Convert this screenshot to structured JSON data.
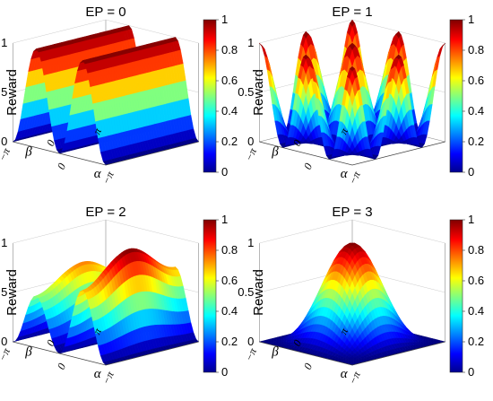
{
  "figure": {
    "colormap": "jet",
    "colormap_stops": [
      "#00008f",
      "#0000ff",
      "#00ffff",
      "#ffff00",
      "#ff0000",
      "#800000"
    ],
    "axis_color": "#888888",
    "text_color": "#000000"
  },
  "chart_data": [
    {
      "type": "surface",
      "title": "EP = 0",
      "zlabel": "Reward",
      "xlabel": "β",
      "ylabel": "α",
      "zlim": [
        0,
        1
      ],
      "z_ticks": [
        "0",
        "0.5",
        "1"
      ],
      "x_ticks": [
        "−π",
        "0",
        "π"
      ],
      "y_ticks": [
        "0",
        "−π"
      ],
      "colorbar": {
        "ticks": [
          "0",
          "0.2",
          "0.4",
          "0.6",
          "0.8",
          "1"
        ],
        "range": [
          0,
          1
        ]
      },
      "function": "two ridges along β, peaks at α = ±π/2, value 1",
      "grid_values": [
        [
          0,
          0.5,
          1,
          0.5,
          0,
          0.5,
          1,
          0.5,
          0
        ]
      ]
    },
    {
      "type": "surface",
      "title": "EP = 1",
      "zlabel": "Reward",
      "xlabel": "β",
      "ylabel": "α",
      "zlim": [
        0,
        1
      ],
      "z_ticks": [
        "0",
        "0.5",
        "1"
      ],
      "x_ticks": [
        "−π",
        "0",
        "π"
      ],
      "y_ticks": [
        "0",
        "−π"
      ],
      "colorbar": {
        "ticks": [
          "0",
          "0.2",
          "0.4",
          "0.6",
          "0.8",
          "1"
        ],
        "range": [
          0,
          1
        ]
      },
      "function": "four peaks at corners and center-edges, value 1",
      "grid_values": [
        [
          1,
          0.5,
          0,
          0.5,
          1
        ]
      ]
    },
    {
      "type": "surface",
      "title": "EP = 2",
      "zlabel": "Reward",
      "xlabel": "β",
      "ylabel": "α",
      "zlim": [
        0,
        1
      ],
      "z_ticks": [
        "0",
        "0.5",
        "1"
      ],
      "x_ticks": [
        "−π",
        "0",
        "π"
      ],
      "y_ticks": [
        "0",
        "−π"
      ],
      "colorbar": {
        "ticks": [
          "0",
          "0.2",
          "0.4",
          "0.6",
          "0.8",
          "1"
        ],
        "range": [
          0,
          1
        ]
      },
      "function": "two ridges, front peak 1, back peak ~0.75",
      "grid_values": [
        [
          0,
          0.5,
          1,
          0.5,
          0,
          0.4,
          0.75,
          0.4,
          0
        ]
      ]
    },
    {
      "type": "surface",
      "title": "EP = 3",
      "zlabel": "Reward",
      "xlabel": "β",
      "ylabel": "α",
      "zlim": [
        0,
        1
      ],
      "z_ticks": [
        "0",
        "0.5",
        "1"
      ],
      "x_ticks": [
        "−π",
        "0",
        "π"
      ],
      "y_ticks": [
        "0",
        "−π"
      ],
      "colorbar": {
        "ticks": [
          "0",
          "0.2",
          "0.4",
          "0.6",
          "0.8",
          "1"
        ],
        "range": [
          0,
          1
        ]
      },
      "function": "single central peak, value 1",
      "grid_values": [
        [
          0,
          0.5,
          1,
          0.5,
          0
        ]
      ]
    }
  ]
}
